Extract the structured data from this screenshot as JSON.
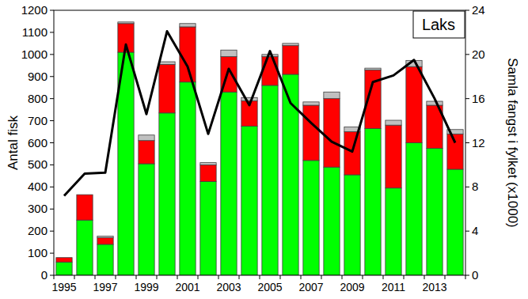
{
  "chart_data": {
    "type": "bar",
    "title": "Laks",
    "y_label": "Antal fisk",
    "y2_label": "Samla fangst i fylket (x1000)",
    "stacked": true,
    "grid": false,
    "categories": [
      "1995",
      null,
      "1997",
      null,
      "1999",
      null,
      "2001",
      null,
      "2003",
      null,
      "2005",
      null,
      "2007",
      null,
      "2009",
      null,
      "2011",
      null,
      "2013",
      null
    ],
    "ylim": [
      0,
      1200
    ],
    "yticks": [
      0,
      100,
      200,
      300,
      400,
      500,
      600,
      700,
      800,
      900,
      1000,
      1100,
      1200
    ],
    "y2lim": [
      0,
      24
    ],
    "y2ticks": [
      0,
      4,
      8,
      12,
      16,
      20,
      24
    ],
    "series": [
      {
        "type": "bar",
        "color": "#00ff00",
        "values": [
          60,
          250,
          140,
          1010,
          505,
          735,
          875,
          425,
          830,
          675,
          860,
          910,
          520,
          490,
          455,
          665,
          395,
          600,
          575,
          480
        ]
      },
      {
        "type": "bar",
        "color": "#ff0000",
        "values": [
          20,
          115,
          30,
          130,
          105,
          220,
          250,
          75,
          160,
          115,
          130,
          130,
          250,
          310,
          195,
          265,
          285,
          345,
          195,
          160
        ]
      },
      {
        "type": "bar",
        "color": "#c0c0c0",
        "values": [
          0,
          0,
          7,
          7,
          25,
          12,
          15,
          10,
          30,
          15,
          10,
          10,
          15,
          30,
          22,
          8,
          22,
          28,
          18,
          20
        ]
      },
      {
        "type": "line",
        "axis": "y2",
        "color": "#000000",
        "values": [
          7.2,
          9.2,
          9.3,
          20.9,
          14.6,
          22.1,
          18.9,
          12.8,
          18.7,
          15.4,
          20.3,
          15.6,
          13.8,
          12.1,
          11.2,
          17.5,
          18.1,
          19.5,
          16.0,
          12.0
        ]
      }
    ]
  }
}
